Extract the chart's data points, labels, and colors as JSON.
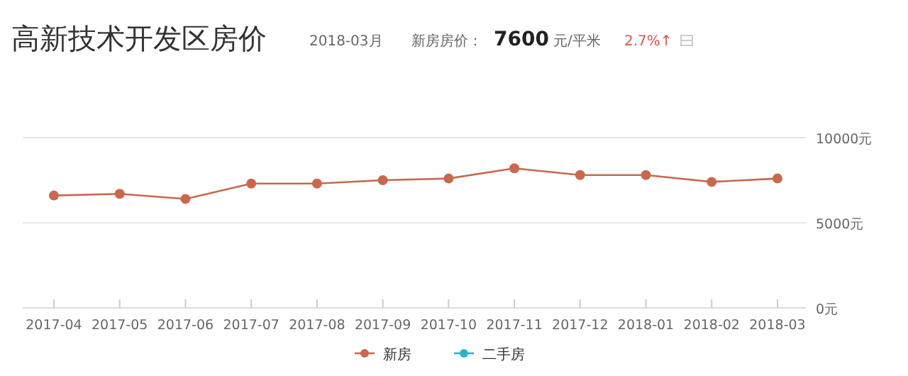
{
  "chart_data": {
    "type": "line",
    "title": "高新技术开发区房价",
    "annotations": [
      "2018-03月",
      "新房房价：",
      "7600",
      "元/平米",
      "2.7%↑"
    ],
    "categories": [
      "2017-04",
      "2017-05",
      "2017-06",
      "2017-07",
      "2017-08",
      "2017-09",
      "2017-10",
      "2017-11",
      "2017-12",
      "2018-01",
      "2018-02",
      "2018-03"
    ],
    "series": [
      {
        "name": "新房",
        "color": "#c8694f",
        "values": [
          6600,
          6700,
          6400,
          7300,
          7300,
          7500,
          7600,
          8200,
          7800,
          7800,
          7400,
          7600
        ]
      },
      {
        "name": "二手房",
        "color": "#2fb3c4",
        "values": [
          null,
          null,
          null,
          null,
          null,
          null,
          null,
          null,
          null,
          null,
          null,
          null
        ]
      }
    ],
    "ylim": [
      0,
      10000
    ],
    "yticks": [
      {
        "value": 0,
        "label": "0元"
      },
      {
        "value": 5000,
        "label": "5000元"
      },
      {
        "value": 10000,
        "label": "10000元"
      }
    ],
    "grid": "y",
    "legend": "bottom",
    "marker": "circle",
    "line_style": "solid"
  }
}
